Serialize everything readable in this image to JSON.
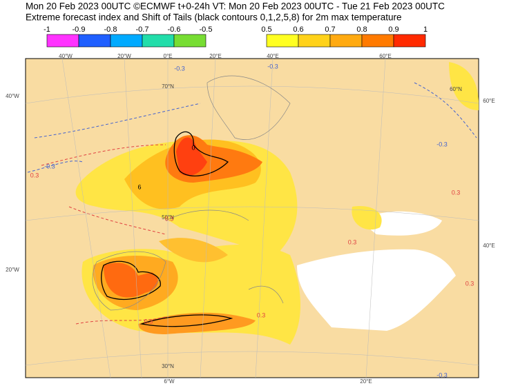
{
  "header": {
    "line1": "Mon 20 Feb 2023 00UTC ©ECMWF t+0-24h  VT: Mon 20 Feb 2023 00UTC - Tue 21 Feb 2023 00UTC",
    "line2": "Extreme forecast index and Shift of Tails (black contours 0,1,2,5,8) for 2m max temperature"
  },
  "legend": {
    "negative": {
      "labels": [
        "-1",
        "-0.9",
        "-0.8",
        "-0.7",
        "-0.6",
        "-0.5"
      ],
      "colors": [
        "#ff33ff",
        "#1f5fff",
        "#00aaff",
        "#22ddaa",
        "#77dd33"
      ]
    },
    "positive": {
      "labels": [
        "0.5",
        "0.6",
        "0.7",
        "0.8",
        "0.9",
        "1"
      ],
      "colors": [
        "#ffff22",
        "#ffd21a",
        "#ffaa11",
        "#ff7a00",
        "#ff2a00"
      ]
    }
  },
  "graticule": [
    {
      "label": "40°W"
    },
    {
      "label": "20°W"
    },
    {
      "label": "0°E"
    },
    {
      "label": "20°E"
    },
    {
      "label": "40°E"
    },
    {
      "label": "60°E"
    },
    {
      "label": "40°W"
    },
    {
      "label": "20°W"
    },
    {
      "label": "60°E"
    },
    {
      "label": "40°E"
    },
    {
      "label": "6°W"
    },
    {
      "label": "20°E"
    },
    {
      "label": "70°N"
    },
    {
      "label": "50°N"
    },
    {
      "label": "30°N"
    },
    {
      "label": "60°N"
    }
  ],
  "contour_labels": [
    "-0.3",
    "-0.3",
    "-0.3",
    "0.3",
    "0.3",
    "0.3",
    "-0.3",
    "0.3",
    "0.3",
    "0.3",
    "0.3",
    "-0.3",
    "6",
    "0"
  ]
}
